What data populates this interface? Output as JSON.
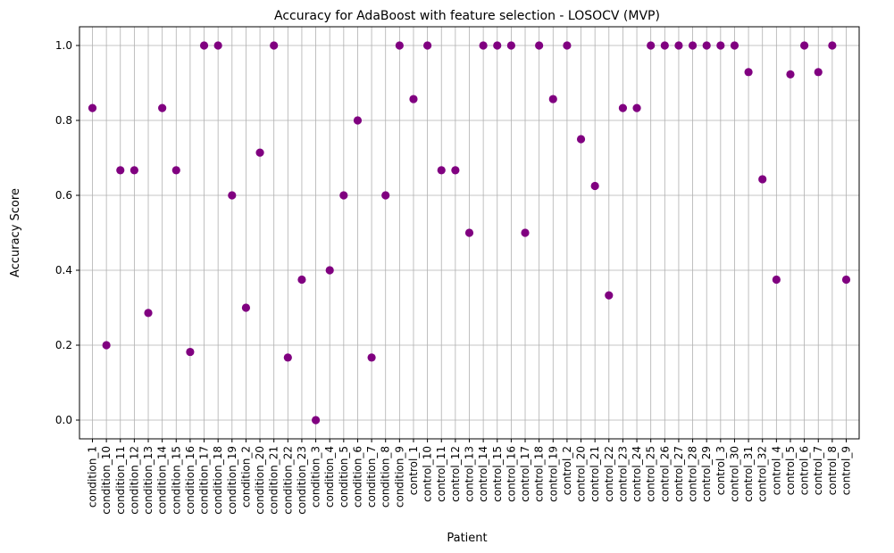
{
  "chart_data": {
    "type": "scatter",
    "title": "Accuracy for AdaBoost with feature selection - LOSOCV (MVP)",
    "xlabel": "Patient",
    "ylabel": "Accuracy Score",
    "ylim": [
      -0.05,
      1.05
    ],
    "yticks": [
      "0.0",
      "0.2",
      "0.4",
      "0.6",
      "0.8",
      "1.0"
    ],
    "grid": true,
    "marker_color": "#800080",
    "categories": [
      "condition_1",
      "condition_10",
      "condition_11",
      "condition_12",
      "condition_13",
      "condition_14",
      "condition_15",
      "condition_16",
      "condition_17",
      "condition_18",
      "condition_19",
      "condition_2",
      "condition_20",
      "condition_21",
      "condition_22",
      "condition_23",
      "condition_3",
      "condition_4",
      "condition_5",
      "condition_6",
      "condition_7",
      "condition_8",
      "condition_9",
      "control_1",
      "control_10",
      "control_11",
      "control_12",
      "control_13",
      "control_14",
      "control_15",
      "control_16",
      "control_17",
      "control_18",
      "control_19",
      "control_2",
      "control_20",
      "control_21",
      "control_22",
      "control_23",
      "control_24",
      "control_25",
      "control_26",
      "control_27",
      "control_28",
      "control_29",
      "control_3",
      "control_30",
      "control_31",
      "control_32",
      "control_4",
      "control_5",
      "control_6",
      "control_7",
      "control_8",
      "control_9"
    ],
    "values": [
      0.833,
      0.2,
      0.667,
      0.667,
      0.286,
      0.833,
      0.667,
      0.182,
      1.0,
      1.0,
      0.6,
      0.3,
      0.714,
      1.0,
      0.167,
      0.375,
      0.0,
      0.4,
      0.6,
      0.8,
      0.167,
      0.6,
      1.0,
      0.857,
      1.0,
      0.667,
      0.667,
      0.5,
      1.0,
      1.0,
      1.0,
      0.5,
      1.0,
      0.857,
      1.0,
      0.75,
      0.625,
      0.333,
      0.833,
      0.833,
      1.0,
      1.0,
      1.0,
      1.0,
      1.0,
      1.0,
      1.0,
      0.929,
      0.643,
      0.375,
      0.923,
      1.0,
      0.929,
      1.0,
      0.375
    ]
  }
}
